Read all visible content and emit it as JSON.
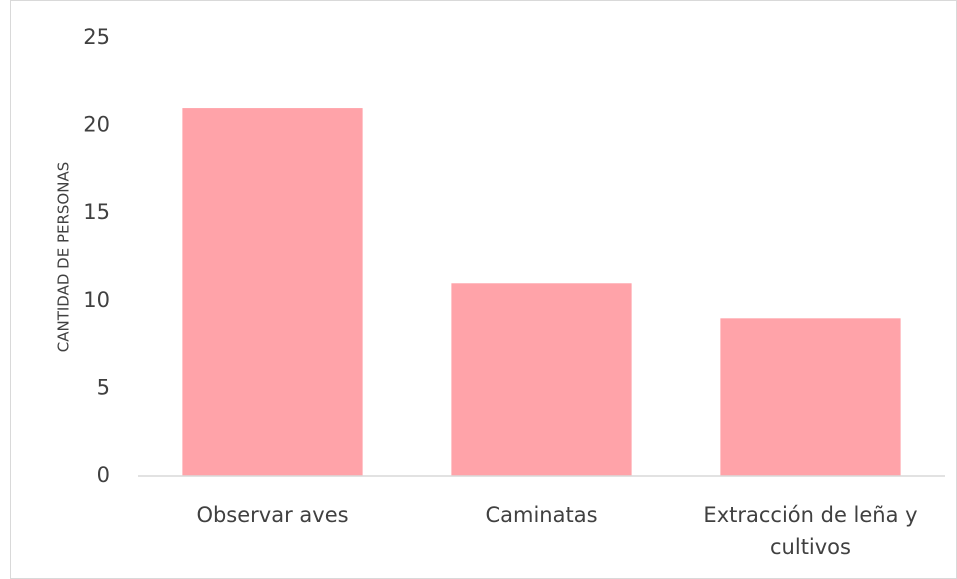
{
  "chart_data": {
    "type": "bar",
    "y_label": "CANTIDAD DE PERSONAS",
    "categories": [
      "Observar aves",
      "Caminatas",
      "Extracción de leña y cultivos"
    ],
    "values": [
      21,
      11,
      9
    ],
    "color": "#ffa3a9",
    "ylim": [
      0,
      25
    ],
    "yticks": [
      0,
      5,
      10,
      15,
      20,
      25
    ],
    "grid": false
  }
}
